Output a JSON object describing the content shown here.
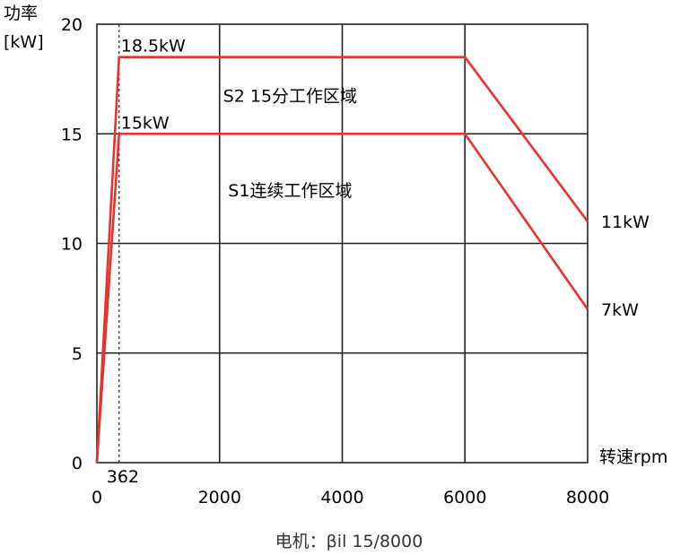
{
  "chart_data": {
    "type": "line",
    "ylabel_line1": "功率",
    "ylabel_line2": "[kW]",
    "xlabel": "转速rpm",
    "caption": "电机：βil 15/8000",
    "xlim": [
      0,
      8000
    ],
    "ylim": [
      0,
      20
    ],
    "x_ticks": [
      0,
      2000,
      4000,
      6000,
      8000
    ],
    "y_ticks": [
      0,
      5,
      10,
      15,
      20
    ],
    "grid": true,
    "dashed_marker": {
      "x": 362,
      "label": "362"
    },
    "series": [
      {
        "x": [
          0,
          362,
          6000,
          8000
        ],
        "y": [
          0,
          18.5,
          18.5,
          11
        ],
        "color": "#e8322a"
      },
      {
        "x": [
          0,
          362,
          6000,
          8000
        ],
        "y": [
          0,
          15,
          15,
          7
        ],
        "color": "#e8322a"
      }
    ],
    "annotations": [
      {
        "text": "18.5kW",
        "x": 362,
        "y": 18.5,
        "anchor": "above-right"
      },
      {
        "text": "15kW",
        "x": 362,
        "y": 15,
        "anchor": "above-right"
      },
      {
        "text": "S2 15分工作区域",
        "x": 3150,
        "y": 16.7,
        "anchor": "middle"
      },
      {
        "text": "S1连续工作区域",
        "x": 3150,
        "y": 12.4,
        "anchor": "middle"
      },
      {
        "text": "11kW",
        "x": 8000,
        "y": 11,
        "anchor": "right"
      },
      {
        "text": "7kW",
        "x": 8000,
        "y": 7,
        "anchor": "right"
      }
    ]
  }
}
